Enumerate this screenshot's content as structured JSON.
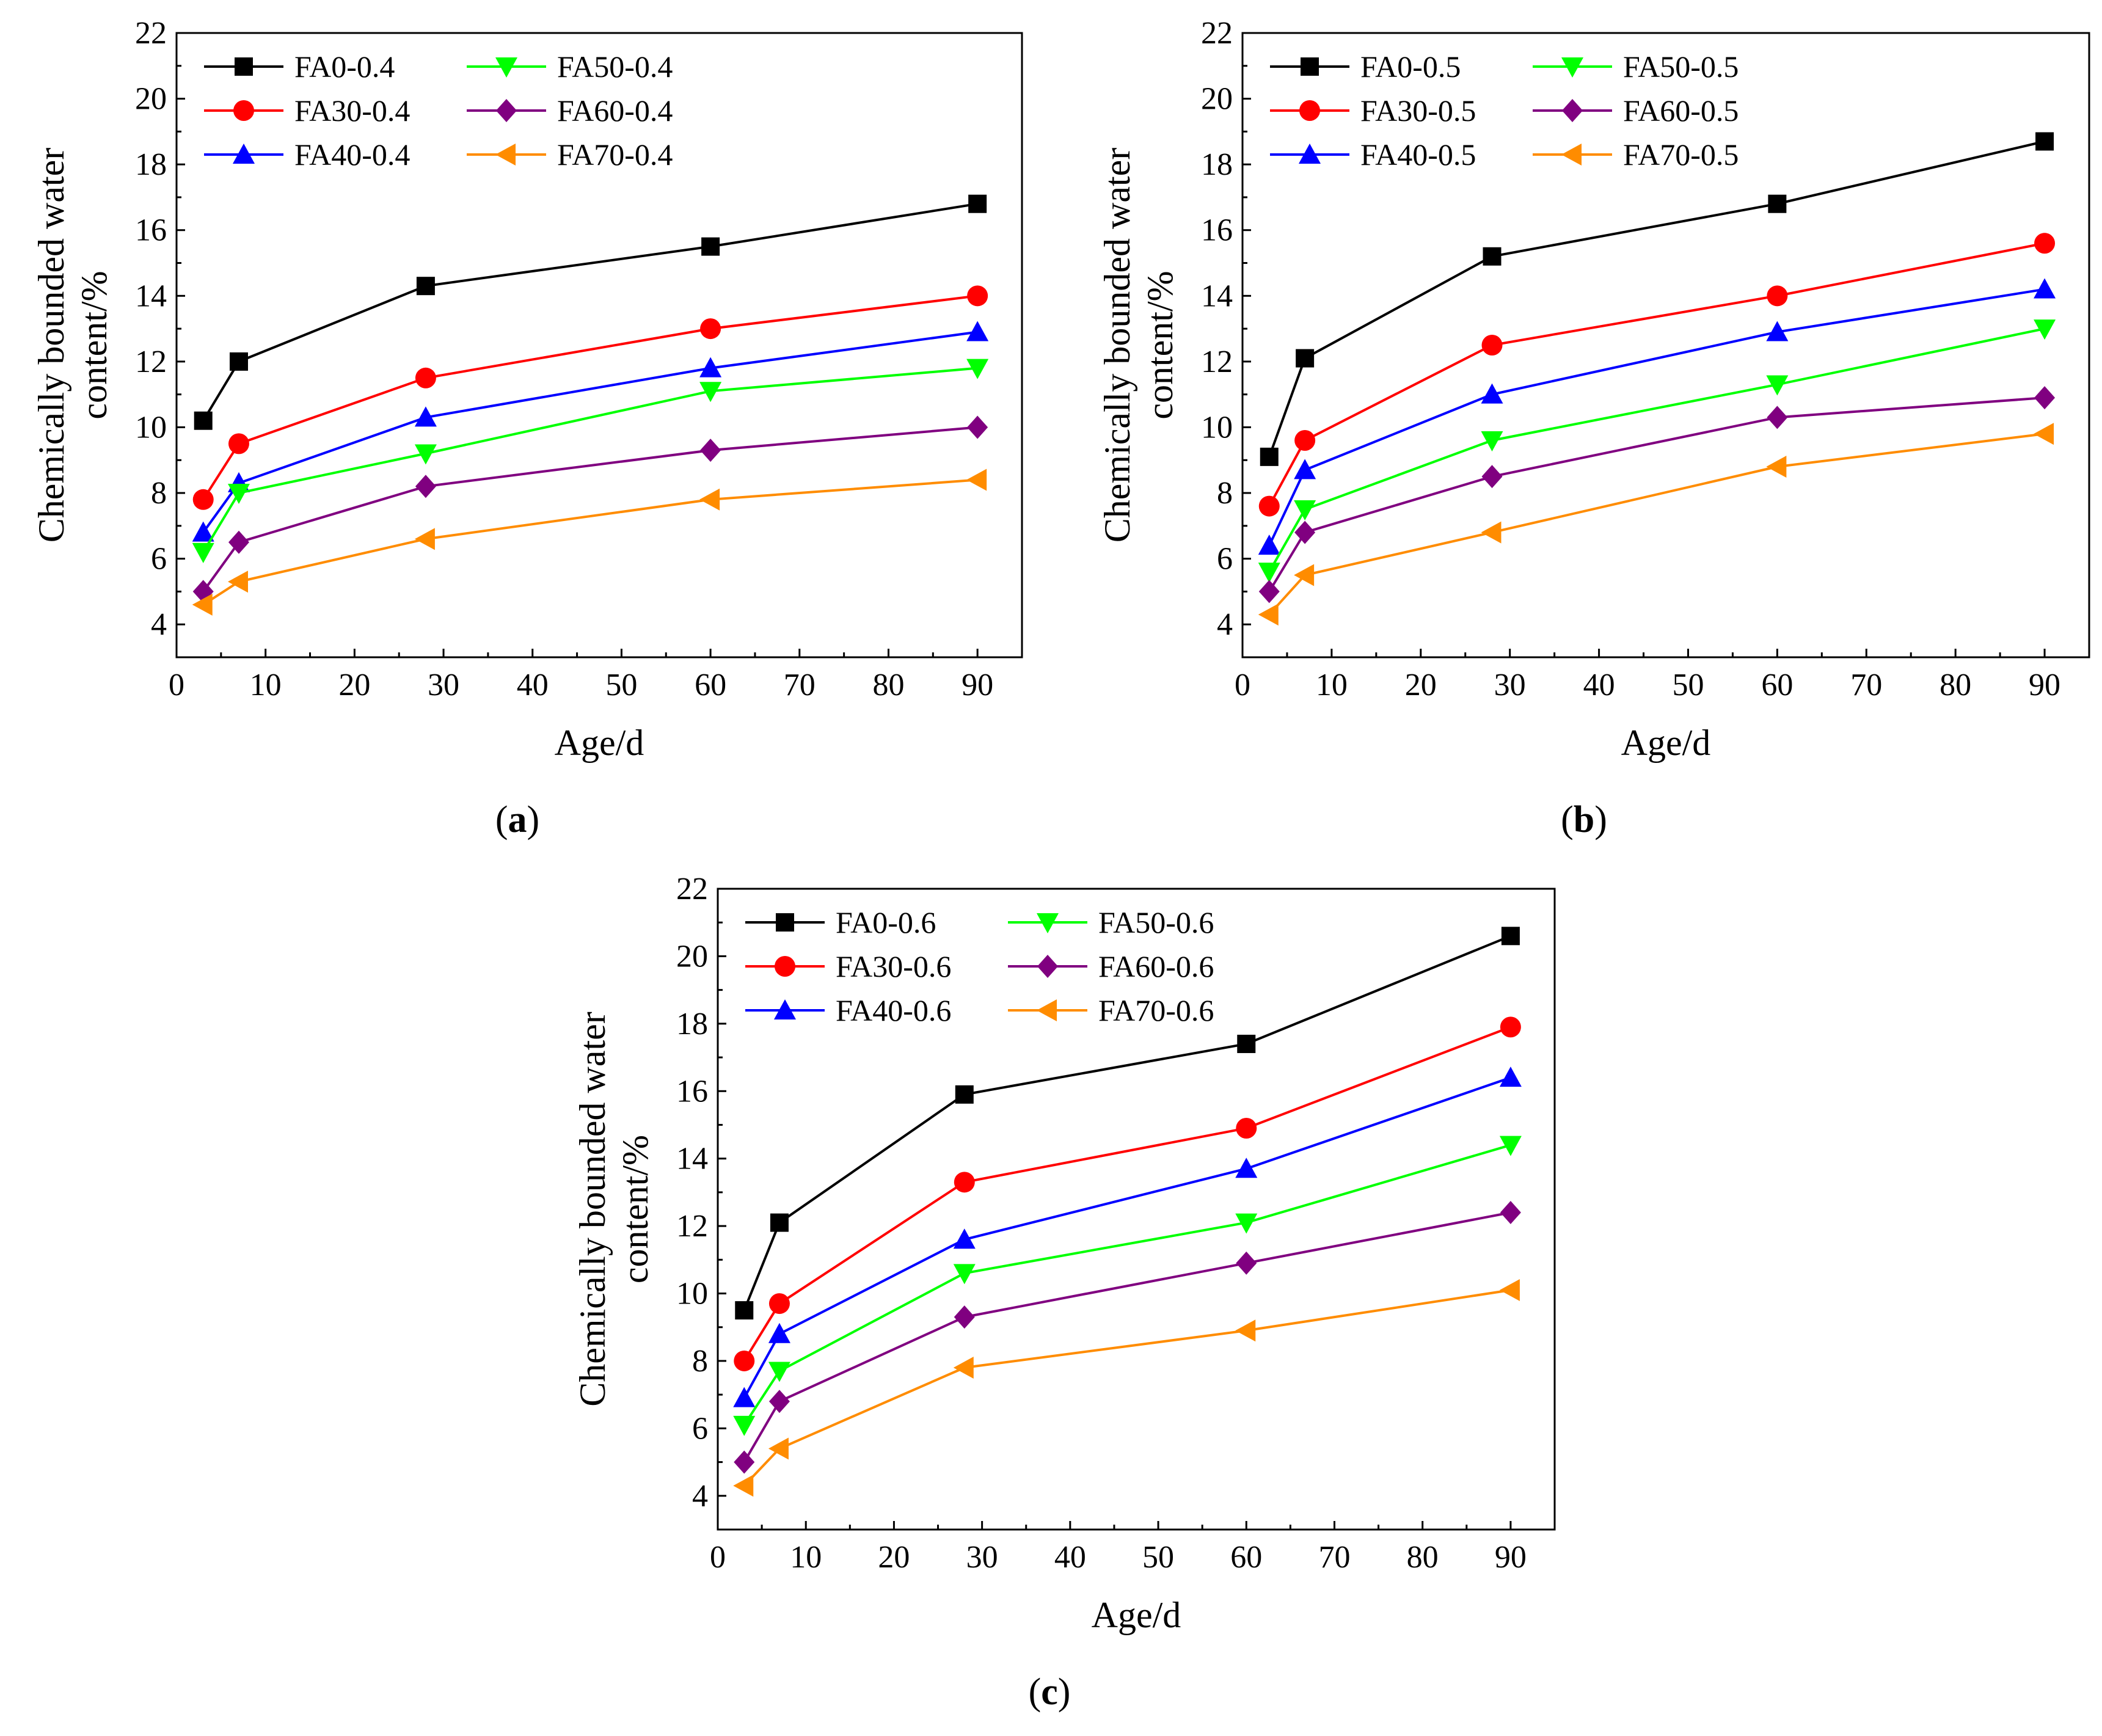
{
  "chart_data": [
    {
      "type": "line",
      "panel_label": "a",
      "x": [
        3,
        7,
        28,
        60,
        90
      ],
      "xlabel": "Age/d",
      "ylabel_line1": "Chemically bounded water",
      "ylabel_line2": "content/%",
      "xlim": [
        0,
        95
      ],
      "ylim": [
        3,
        22
      ],
      "xticks": [
        0,
        10,
        20,
        30,
        40,
        50,
        60,
        70,
        80,
        90
      ],
      "yticks": [
        4,
        6,
        8,
        10,
        12,
        14,
        16,
        18,
        20,
        22
      ],
      "legend_position": "top-left",
      "series": [
        {
          "name": "FA0-0.4",
          "color": "#000000",
          "marker": "square",
          "values": [
            10.2,
            12.0,
            14.3,
            15.5,
            16.8
          ]
        },
        {
          "name": "FA30-0.4",
          "color": "#ff0000",
          "marker": "circle",
          "values": [
            7.8,
            9.5,
            11.5,
            13.0,
            14.0
          ]
        },
        {
          "name": "FA40-0.4",
          "color": "#0000ff",
          "marker": "triangle-up",
          "values": [
            6.8,
            8.3,
            10.3,
            11.8,
            12.9
          ]
        },
        {
          "name": "FA50-0.4",
          "color": "#00ff00",
          "marker": "triangle-down",
          "values": [
            6.2,
            8.0,
            9.2,
            11.1,
            11.8
          ]
        },
        {
          "name": "FA60-0.4",
          "color": "#800080",
          "marker": "diamond",
          "values": [
            5.0,
            6.5,
            8.2,
            9.3,
            10.0
          ]
        },
        {
          "name": "FA70-0.4",
          "color": "#ff8c00",
          "marker": "triangle-left",
          "values": [
            4.6,
            5.3,
            6.6,
            7.8,
            8.4
          ]
        }
      ]
    },
    {
      "type": "line",
      "panel_label": "b",
      "x": [
        3,
        7,
        28,
        60,
        90
      ],
      "xlabel": "Age/d",
      "ylabel_line1": "Chemically bounded water",
      "ylabel_line2": "content/%",
      "xlim": [
        0,
        95
      ],
      "ylim": [
        3,
        22
      ],
      "xticks": [
        0,
        10,
        20,
        30,
        40,
        50,
        60,
        70,
        80,
        90
      ],
      "yticks": [
        4,
        6,
        8,
        10,
        12,
        14,
        16,
        18,
        20,
        22
      ],
      "legend_position": "top-left",
      "series": [
        {
          "name": "FA0-0.5",
          "color": "#000000",
          "marker": "square",
          "values": [
            9.1,
            12.1,
            15.2,
            16.8,
            18.7
          ]
        },
        {
          "name": "FA30-0.5",
          "color": "#ff0000",
          "marker": "circle",
          "values": [
            7.6,
            9.6,
            12.5,
            14.0,
            15.6
          ]
        },
        {
          "name": "FA40-0.5",
          "color": "#0000ff",
          "marker": "triangle-up",
          "values": [
            6.4,
            8.7,
            11.0,
            12.9,
            14.2
          ]
        },
        {
          "name": "FA50-0.5",
          "color": "#00ff00",
          "marker": "triangle-down",
          "values": [
            5.6,
            7.5,
            9.6,
            11.3,
            13.0
          ]
        },
        {
          "name": "FA60-0.5",
          "color": "#800080",
          "marker": "diamond",
          "values": [
            5.0,
            6.8,
            8.5,
            10.3,
            10.9
          ]
        },
        {
          "name": "FA70-0.5",
          "color": "#ff8c00",
          "marker": "triangle-left",
          "values": [
            4.3,
            5.5,
            6.8,
            8.8,
            9.8
          ]
        }
      ]
    },
    {
      "type": "line",
      "panel_label": "c",
      "x": [
        3,
        7,
        28,
        60,
        90
      ],
      "xlabel": "Age/d",
      "ylabel_line1": "Chemically bounded water",
      "ylabel_line2": "content/%",
      "xlim": [
        0,
        95
      ],
      "ylim": [
        3,
        22
      ],
      "xticks": [
        0,
        10,
        20,
        30,
        40,
        50,
        60,
        70,
        80,
        90
      ],
      "yticks": [
        4,
        6,
        8,
        10,
        12,
        14,
        16,
        18,
        20,
        22
      ],
      "legend_position": "top-left",
      "series": [
        {
          "name": "FA0-0.6",
          "color": "#000000",
          "marker": "square",
          "values": [
            9.5,
            12.1,
            15.9,
            17.4,
            20.6
          ]
        },
        {
          "name": "FA30-0.6",
          "color": "#ff0000",
          "marker": "circle",
          "values": [
            8.0,
            9.7,
            13.3,
            14.9,
            17.9
          ]
        },
        {
          "name": "FA40-0.6",
          "color": "#0000ff",
          "marker": "triangle-up",
          "values": [
            6.9,
            8.8,
            11.6,
            13.7,
            16.4
          ]
        },
        {
          "name": "FA50-0.6",
          "color": "#00ff00",
          "marker": "triangle-down",
          "values": [
            6.1,
            7.7,
            10.6,
            12.1,
            14.4
          ]
        },
        {
          "name": "FA60-0.6",
          "color": "#800080",
          "marker": "diamond",
          "values": [
            5.0,
            6.8,
            9.3,
            10.9,
            12.4
          ]
        },
        {
          "name": "FA70-0.6",
          "color": "#ff8c00",
          "marker": "triangle-left",
          "values": [
            4.3,
            5.4,
            7.8,
            8.9,
            10.1
          ]
        }
      ]
    }
  ]
}
